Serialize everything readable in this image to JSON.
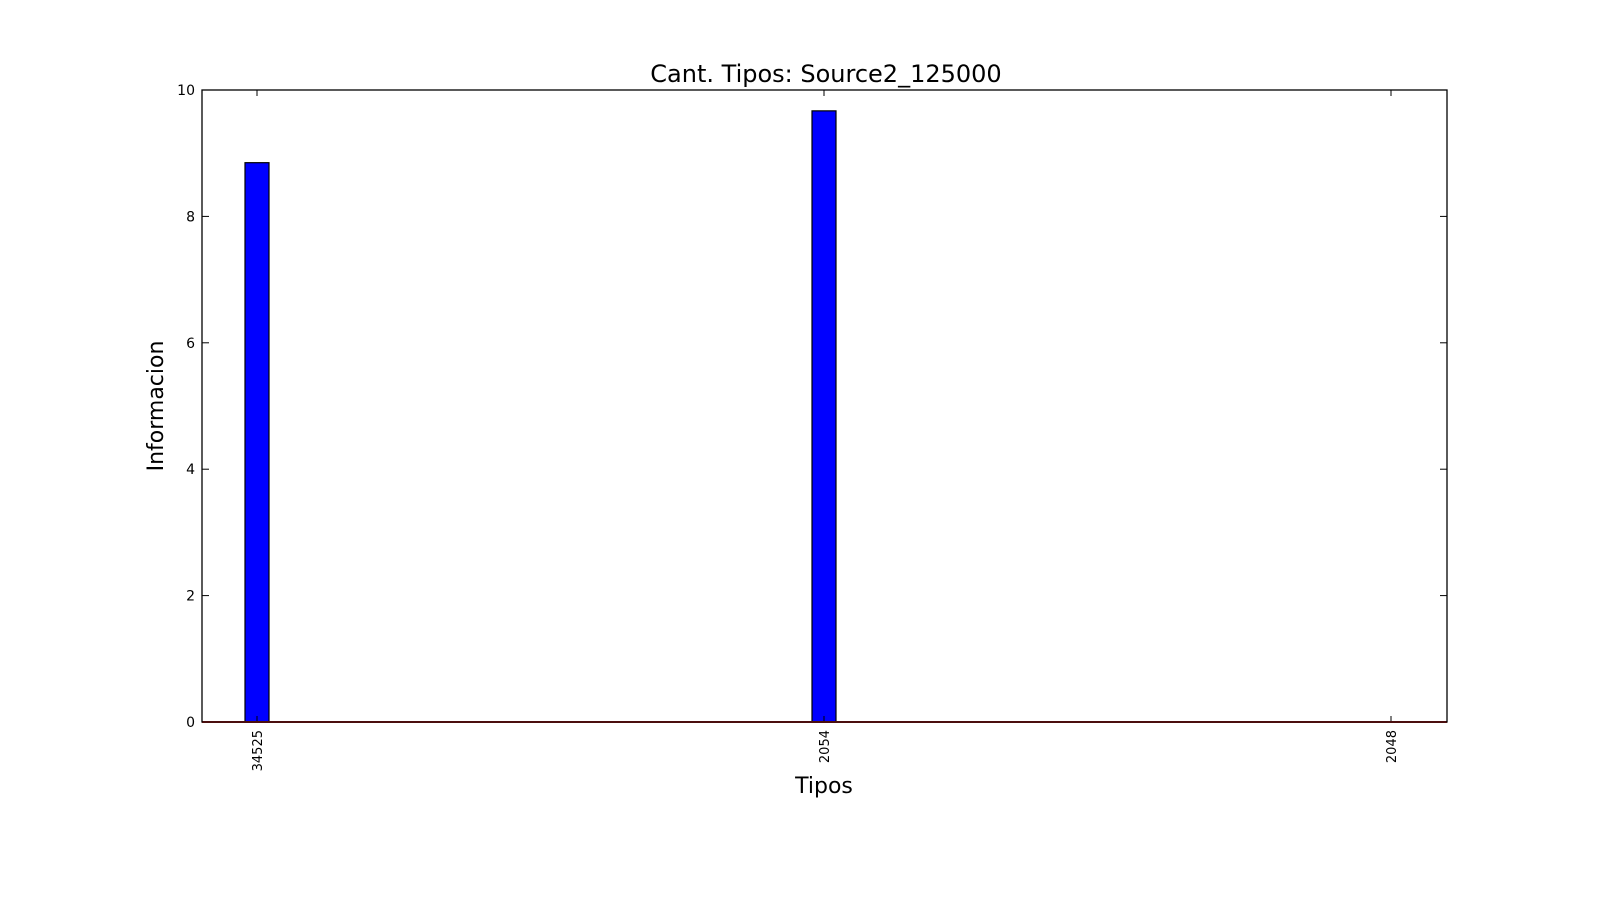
{
  "chart_data": {
    "type": "bar",
    "title": "Cant. Tipos: Source2_125000",
    "xlabel": "Tipos",
    "ylabel": "Informacion",
    "categories": [
      "34525",
      "2054",
      "2048"
    ],
    "values": [
      8.85,
      9.67,
      0
    ],
    "ylim": [
      0,
      10
    ],
    "yticks": [
      0,
      2,
      4,
      6,
      8,
      10
    ],
    "grid": false,
    "reference_line_y": 0,
    "colors": {
      "bar_fill": "#0000ff",
      "bar_edge": "#000000",
      "reference_line": "#d62728",
      "axes": "#000000"
    }
  }
}
